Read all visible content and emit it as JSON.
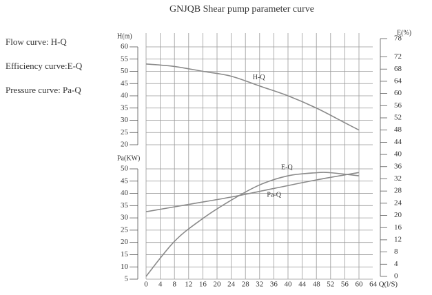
{
  "chart_data": {
    "type": "line",
    "title": "GNJQB Shear pump parameter curve",
    "notes": [
      "Flow curve: H-Q",
      "Efficiency curve:E-Q",
      "Pressure curve: Pa-Q"
    ],
    "x_label": "Q(l/S)",
    "xlim": [
      0,
      64
    ],
    "xticks": [
      0,
      4,
      8,
      12,
      16,
      20,
      24,
      28,
      32,
      36,
      40,
      44,
      48,
      52,
      56,
      60,
      64
    ],
    "axes": {
      "h": {
        "label": "H(m)",
        "lim": [
          20,
          60
        ],
        "ticks": [
          20,
          25,
          30,
          35,
          40,
          45,
          50,
          55,
          60
        ]
      },
      "pa": {
        "label": "Pa(KW)",
        "lim": [
          5,
          50
        ],
        "ticks": [
          5,
          10,
          15,
          20,
          25,
          30,
          35,
          40,
          45,
          50
        ]
      },
      "e": {
        "label": "E(%)",
        "lim": [
          0,
          78
        ],
        "ticks": [
          0,
          4,
          8,
          12,
          16,
          20,
          24,
          28,
          32,
          36,
          40,
          44,
          48,
          52,
          56,
          60,
          64,
          68,
          72,
          78
        ]
      }
    },
    "grid": true,
    "series": [
      {
        "name": "H-Q",
        "axis": "h",
        "color": "#8a8a8a",
        "x": [
          0,
          8,
          16,
          24,
          32,
          40,
          48,
          56,
          60
        ],
        "values": [
          53,
          52,
          50,
          48,
          44,
          40,
          35,
          29,
          26
        ]
      },
      {
        "name": "E-Q",
        "axis": "e",
        "color": "#8a8a8a",
        "x": [
          0,
          8,
          16,
          24,
          32,
          40,
          48,
          52,
          60
        ],
        "values": [
          0,
          11.5,
          19,
          25,
          30,
          33,
          34,
          34,
          33
        ]
      },
      {
        "name": "Pa-Q",
        "axis": "pa",
        "color": "#8a8a8a",
        "x": [
          0,
          12,
          24,
          36,
          48,
          60
        ],
        "values": [
          32.5,
          35.5,
          38.5,
          42,
          45.5,
          48.5
        ]
      }
    ]
  }
}
